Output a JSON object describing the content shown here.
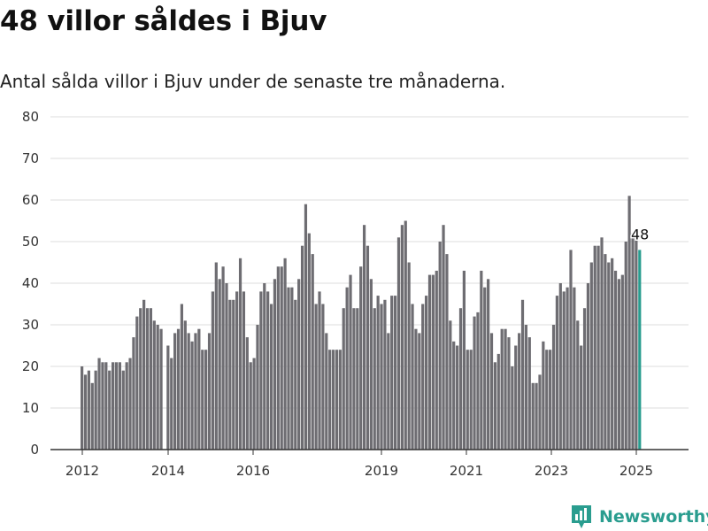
{
  "title": "48 villor såldes i Bjuv",
  "subtitle": "Antal sålda villor i Bjuv under de senaste tre månaderna.",
  "brand": {
    "name": "Newsworthy",
    "icon": "chart-logo-icon"
  },
  "colors": {
    "bar": "#6e6d72",
    "highlight": "#2a9d8f",
    "grid": "#dddddd",
    "axis": "#333333"
  },
  "chart_data": {
    "type": "bar",
    "ylim": [
      0,
      80
    ],
    "yticks": [
      0,
      10,
      20,
      30,
      40,
      50,
      60,
      70,
      80
    ],
    "xticks": [
      "2012",
      "2014",
      "2016",
      "2019",
      "2021",
      "2023",
      "2025"
    ],
    "grid": true,
    "legend": "none",
    "highlight_label": "48",
    "values": [
      20,
      18,
      19,
      16,
      19,
      22,
      21,
      21,
      19,
      21,
      21,
      21,
      19,
      21,
      22,
      27,
      32,
      34,
      36,
      34,
      34,
      31,
      30,
      29,
      null,
      25,
      22,
      28,
      29,
      35,
      31,
      28,
      26,
      28,
      29,
      24,
      24,
      28,
      38,
      45,
      41,
      44,
      40,
      36,
      36,
      38,
      46,
      38,
      27,
      21,
      22,
      30,
      38,
      40,
      38,
      35,
      41,
      44,
      44,
      46,
      39,
      39,
      36,
      41,
      49,
      59,
      52,
      47,
      35,
      38,
      35,
      28,
      24,
      24,
      24,
      24,
      34,
      39,
      42,
      34,
      34,
      44,
      54,
      49,
      41,
      34,
      37,
      35,
      36,
      28,
      37,
      37,
      51,
      54,
      55,
      45,
      35,
      29,
      28,
      35,
      37,
      42,
      42,
      43,
      50,
      54,
      47,
      31,
      26,
      25,
      34,
      43,
      24,
      24,
      32,
      33,
      43,
      39,
      41,
      28,
      21,
      23,
      29,
      29,
      27,
      20,
      25,
      28,
      36,
      30,
      27,
      16,
      16,
      18,
      26,
      24,
      24,
      30,
      37,
      40,
      38,
      39,
      48,
      39,
      31,
      25,
      34,
      40,
      45,
      49,
      49,
      51,
      47,
      45,
      46,
      43,
      41,
      42,
      50,
      61,
      52,
      51,
      48
    ]
  }
}
